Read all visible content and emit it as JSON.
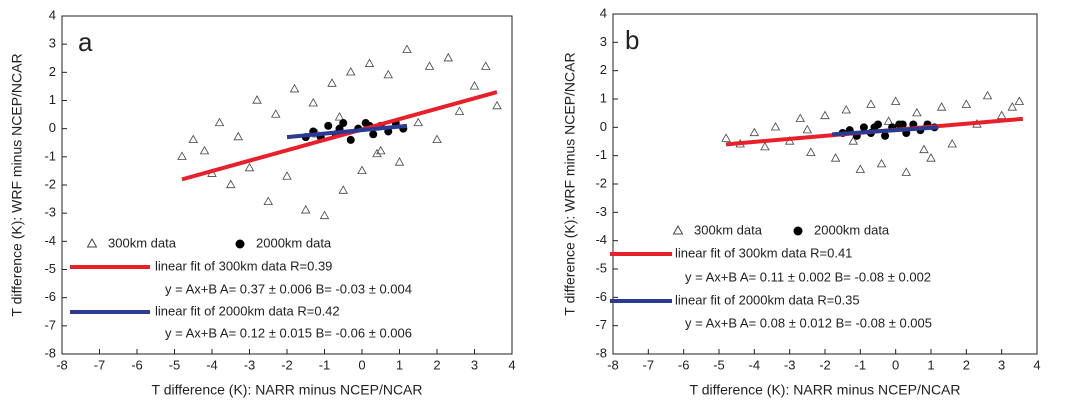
{
  "chart_data": [
    {
      "type": "scatter",
      "panel_label": "a",
      "xlabel": "T difference (K): NARR minus NCEP/NCAR",
      "ylabel": "T difference (K): WRF minus NCEP/NCAR",
      "xlim": [
        -8,
        4
      ],
      "ylim": [
        -8,
        4
      ],
      "xticks": [
        -8,
        -7,
        -6,
        -5,
        -4,
        -3,
        -2,
        -1,
        0,
        1,
        2,
        3,
        4
      ],
      "yticks": [
        -8,
        -7,
        -6,
        -5,
        -4,
        -3,
        -2,
        -1,
        0,
        1,
        2,
        3,
        4
      ],
      "series": [
        {
          "name": "300km data",
          "marker": "triangle",
          "color": "#444444",
          "x": [
            -4.8,
            -4.5,
            -4.2,
            -4,
            -3.8,
            -3.5,
            -3.3,
            -3,
            -2.8,
            -2.5,
            -2.3,
            -2,
            -1.8,
            -1.5,
            -1.3,
            -1,
            -0.8,
            -0.5,
            -0.3,
            0,
            0.2,
            0.5,
            0.7,
            1,
            1.2,
            1.5,
            1.8,
            2,
            2.3,
            2.6,
            3,
            3.3,
            3.6,
            -1.2,
            -0.6,
            0.4
          ],
          "values": [
            -1,
            -0.4,
            -0.8,
            -1.6,
            0.2,
            -2,
            -0.3,
            -1.4,
            1,
            -2.6,
            0.5,
            -1.7,
            1.4,
            -2.9,
            0.9,
            -3.1,
            1.6,
            -2.2,
            2,
            -1.5,
            2.3,
            -0.8,
            1.9,
            -1.2,
            2.8,
            0.2,
            2.2,
            -0.4,
            2.5,
            0.6,
            1.5,
            2.2,
            0.8,
            -0.2,
            0.4,
            -0.9
          ]
        },
        {
          "name": "2000km data",
          "marker": "circle",
          "color": "#000000",
          "x": [
            -1.5,
            -1.3,
            -1.1,
            -0.9,
            -0.7,
            -0.5,
            -0.3,
            -0.1,
            0.1,
            0.3,
            0.5,
            0.7,
            0.9,
            1.1,
            -0.6,
            0.2
          ],
          "values": [
            -0.3,
            -0.1,
            -0.3,
            0.1,
            -0.2,
            0.2,
            -0.4,
            0,
            0.2,
            -0.2,
            0.1,
            -0.1,
            0.2,
            0,
            0,
            0.1
          ]
        },
        {
          "name": "linear fit of 300km data R=0.39",
          "marker": "line",
          "color": "#e8202a",
          "equation": "y = Ax+B  A=  0.37 ± 0.006  B= -0.03 ± 0.004",
          "x": [
            -4.8,
            3.6
          ],
          "values": [
            -1.8,
            1.3
          ]
        },
        {
          "name": "linear fit of 2000km data R=0.42",
          "marker": "line",
          "color": "#2b3a93",
          "equation": "y = Ax+B  A=  0.12 ± 0.015  B= -0.06 ± 0.006",
          "x": [
            -2,
            1.2
          ],
          "values": [
            -0.3,
            0.1
          ]
        }
      ]
    },
    {
      "type": "scatter",
      "panel_label": "b",
      "xlabel": "T difference (K): NARR minus NCEP/NCAR",
      "ylabel": "T difference (K): WRF minus NCEP/NCAR",
      "xlim": [
        -8,
        4
      ],
      "ylim": [
        -8,
        4
      ],
      "xticks": [
        -8,
        -7,
        -6,
        -5,
        -4,
        -3,
        -2,
        -1,
        0,
        1,
        2,
        3,
        4
      ],
      "yticks": [
        -8,
        -7,
        -6,
        -5,
        -4,
        -3,
        -2,
        -1,
        0,
        1,
        2,
        3,
        4
      ],
      "series": [
        {
          "name": "300km data",
          "marker": "triangle",
          "color": "#444444",
          "x": [
            -4.8,
            -4.4,
            -4,
            -3.7,
            -3.4,
            -3,
            -2.7,
            -2.4,
            -2,
            -1.7,
            -1.4,
            -1,
            -0.7,
            -0.4,
            0,
            0.3,
            0.6,
            1,
            1.3,
            1.6,
            2,
            2.3,
            2.6,
            3,
            3.3,
            3.5,
            -1.2,
            -0.2,
            0.8,
            -2.5
          ],
          "values": [
            -0.4,
            -0.6,
            -0.2,
            -0.7,
            0,
            -0.5,
            0.3,
            -0.9,
            0.4,
            -1.1,
            0.6,
            -1.5,
            0.8,
            -1.3,
            0.9,
            -1.6,
            0.5,
            -1.1,
            0.7,
            -0.6,
            0.8,
            0.1,
            1.1,
            0.4,
            0.7,
            0.9,
            -0.5,
            0.2,
            -0.8,
            -0.1
          ]
        },
        {
          "name": "2000km data",
          "marker": "circle",
          "color": "#000000",
          "x": [
            -1.5,
            -1.3,
            -1.1,
            -0.9,
            -0.7,
            -0.5,
            -0.3,
            -0.1,
            0.1,
            0.3,
            0.5,
            0.7,
            0.9,
            1.1,
            -0.6,
            0.2
          ],
          "values": [
            -0.2,
            -0.1,
            -0.3,
            0,
            -0.2,
            0.1,
            -0.3,
            0,
            0.1,
            -0.2,
            0.1,
            -0.1,
            0.1,
            0,
            0,
            0.1
          ]
        },
        {
          "name": "linear fit of 300km data R=0.41",
          "marker": "line",
          "color": "#e8202a",
          "equation": "y = Ax+B  A=  0.11 ± 0.002  B= -0.08 ± 0.002",
          "x": [
            -4.8,
            3.6
          ],
          "values": [
            -0.6,
            0.3
          ]
        },
        {
          "name": "linear fit of 2000km data R=0.35",
          "marker": "line",
          "color": "#2b3a93",
          "equation": "y = Ax+B  A=  0.08 ± 0.012  B= -0.08 ± 0.005",
          "x": [
            -1.8,
            1.2
          ],
          "values": [
            -0.25,
            0
          ]
        }
      ]
    }
  ]
}
